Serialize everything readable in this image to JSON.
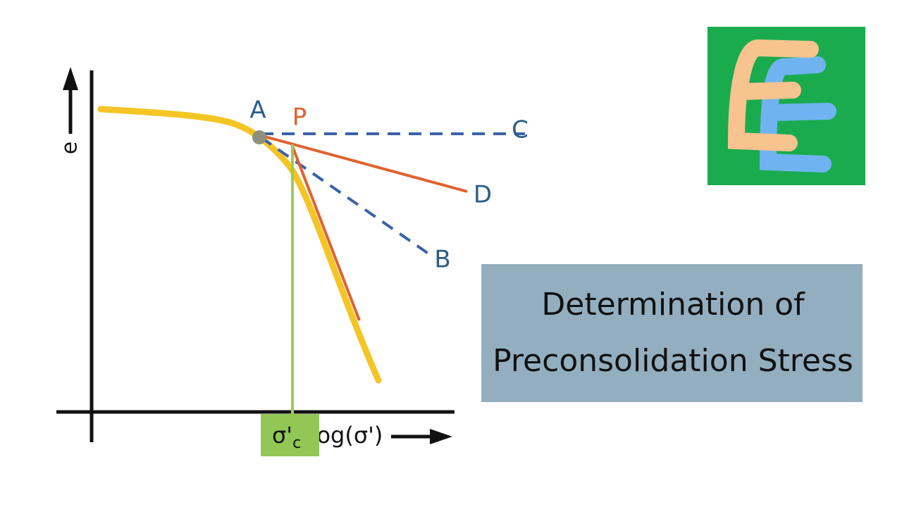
{
  "axes": {
    "y_label": "e",
    "x_label": "log(σ')"
  },
  "points": {
    "a": "A",
    "p": "P",
    "b": "B",
    "c": "C",
    "d": "D"
  },
  "marker": {
    "symbol": "σ'",
    "subscript": "c"
  },
  "title": {
    "line1": "Determination of",
    "line2": "Preconsolidation Stress"
  }
}
